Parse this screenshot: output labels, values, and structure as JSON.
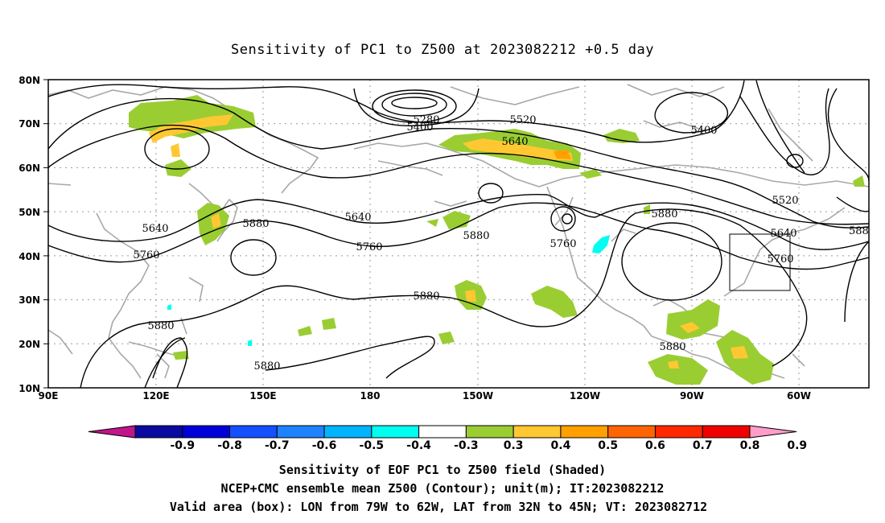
{
  "title": "Sensitivity of PC1 to Z500 at 2023082212 +0.5 day",
  "lat_ticks": [
    "80N",
    "70N",
    "60N",
    "50N",
    "40N",
    "30N",
    "20N",
    "10N"
  ],
  "lon_ticks": [
    "90E",
    "120E",
    "150E",
    "180",
    "150W",
    "120W",
    "90W",
    "60W"
  ],
  "contour_labels": [
    "5280",
    "5400",
    "5520",
    "5640",
    "5400",
    "5520",
    "5640",
    "5640",
    "5760",
    "5880",
    "5640",
    "5760",
    "5880",
    "5880",
    "5760",
    "5880",
    "5640",
    "5760",
    "588",
    "5880",
    "5880",
    "5880",
    "5880"
  ],
  "colorbar": {
    "labels": [
      "-0.9",
      "-0.8",
      "-0.7",
      "-0.6",
      "-0.5",
      "-0.4",
      "-0.3",
      "0.3",
      "0.4",
      "0.5",
      "0.6",
      "0.7",
      "0.8",
      "0.9"
    ],
    "colors": [
      "#c0168c",
      "#0a0aa0",
      "#0000d8",
      "#1450ff",
      "#1e82ff",
      "#00b4ff",
      "#00fff0",
      "#ffffff",
      "#9acd32",
      "#ffc832",
      "#ffa000",
      "#ff6400",
      "#ff2800",
      "#f00000",
      "#ff9ec8"
    ]
  },
  "footer": [
    "Sensitivity of EOF PC1 to Z500 field (Shaded)",
    "NCEP+CMC ensemble mean Z500 (Contour); unit(m); IT:2023082212",
    "Valid area (box): LON from 79W to 62W, LAT from 32N to 45N; VT: 2023082712"
  ],
  "colors": {
    "coast": "#a8a8a8",
    "grid": "#9a9a9a",
    "contour": "#000000",
    "shade_green": "#9acd32",
    "shade_yellow": "#ffc832",
    "shade_orange": "#ffa000",
    "shade_cyan": "#00fff0"
  }
}
